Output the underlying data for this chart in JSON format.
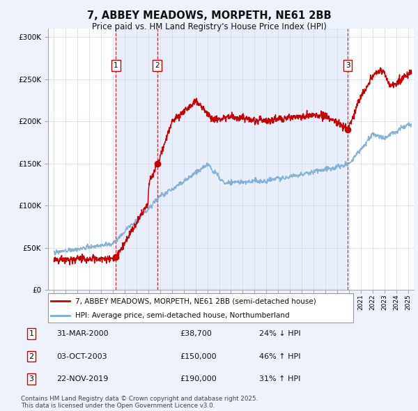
{
  "title": "7, ABBEY MEADOWS, MORPETH, NE61 2BB",
  "subtitle": "Price paid vs. HM Land Registry's House Price Index (HPI)",
  "bg_color": "#eef2fb",
  "plot_bg_color": "#ffffff",
  "hpi_color": "#7aaad4",
  "price_color": "#cc0000",
  "sale_marker_color": "#cc0000",
  "ymin": 0,
  "ymax": 310000,
  "yticks": [
    0,
    50000,
    100000,
    150000,
    200000,
    250000,
    300000
  ],
  "ytick_labels": [
    "£0",
    "£50K",
    "£100K",
    "£150K",
    "£200K",
    "£250K",
    "£300K"
  ],
  "xmin": 1994.5,
  "xmax": 2025.5,
  "sales": [
    {
      "num": 1,
      "date": "31-MAR-2000",
      "year": 2000.25,
      "price": 38700,
      "pct": "24%",
      "dir": "↓"
    },
    {
      "num": 2,
      "date": "03-OCT-2003",
      "year": 2003.75,
      "price": 150000,
      "pct": "46%",
      "dir": "↑"
    },
    {
      "num": 3,
      "date": "22-NOV-2019",
      "year": 2019.9,
      "price": 190000,
      "pct": "31%",
      "dir": "↑"
    }
  ],
  "legend_line1": "7, ABBEY MEADOWS, MORPETH, NE61 2BB (semi-detached house)",
  "legend_line2": "HPI: Average price, semi-detached house, Northumberland",
  "footer": "Contains HM Land Registry data © Crown copyright and database right 2025.\nThis data is licensed under the Open Government Licence v3.0.",
  "grid_color": "#d0d8e8",
  "vline_color": "#cc0000",
  "shade_color": "#ccddf5"
}
